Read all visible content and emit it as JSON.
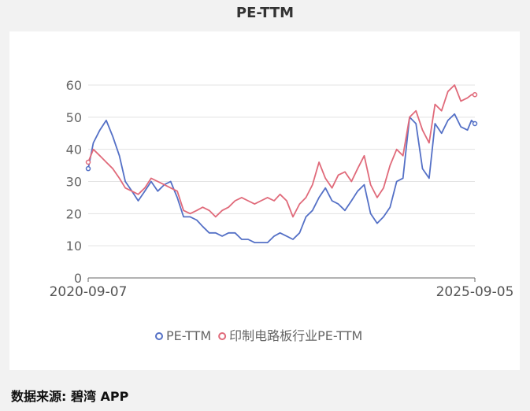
{
  "title": "PE-TTM",
  "source": "数据来源: 碧湾 APP",
  "colors": {
    "series1": "#5470c6",
    "series2": "#e06a7a",
    "grid": "#e3e3e3",
    "axis": "#666666"
  },
  "chart_data": {
    "type": "line",
    "title": "PE-TTM",
    "ylim": [
      0,
      60
    ],
    "yticks": [
      0,
      10,
      20,
      30,
      40,
      50,
      60
    ],
    "x_start": "2020-09-07",
    "x_end": "2025-09-05",
    "x_tick_labels": [
      "2020-09-07",
      "2025-09-05"
    ],
    "grid": true,
    "legend_position": "bottom",
    "series": [
      {
        "name": "PE-TTM",
        "x": [
          "2020-09-07",
          "2020-10-01",
          "2020-11-01",
          "2020-12-01",
          "2021-01-01",
          "2021-02-01",
          "2021-03-01",
          "2021-04-01",
          "2021-05-01",
          "2021-06-01",
          "2021-07-01",
          "2021-08-01",
          "2021-09-01",
          "2021-10-01",
          "2021-11-01",
          "2021-12-01",
          "2022-01-01",
          "2022-02-01",
          "2022-03-01",
          "2022-04-01",
          "2022-05-01",
          "2022-06-01",
          "2022-07-01",
          "2022-08-01",
          "2022-09-01",
          "2022-10-01",
          "2022-11-01",
          "2022-12-01",
          "2023-01-01",
          "2023-02-01",
          "2023-03-01",
          "2023-04-01",
          "2023-05-01",
          "2023-06-01",
          "2023-07-01",
          "2023-08-01",
          "2023-09-01",
          "2023-10-01",
          "2023-11-01",
          "2023-12-01",
          "2024-01-01",
          "2024-02-01",
          "2024-03-01",
          "2024-04-01",
          "2024-05-01",
          "2024-06-01",
          "2024-07-01",
          "2024-08-01",
          "2024-09-01",
          "2024-10-01",
          "2024-11-01",
          "2024-12-01",
          "2025-01-01",
          "2025-02-01",
          "2025-03-01",
          "2025-04-01",
          "2025-05-01",
          "2025-06-01",
          "2025-07-01",
          "2025-08-01",
          "2025-08-20",
          "2025-09-05"
        ],
        "values": [
          34,
          42,
          46,
          49,
          44,
          38,
          30,
          27,
          24,
          27,
          30,
          27,
          29,
          30,
          25,
          19,
          19,
          18,
          16,
          14,
          14,
          13,
          14,
          14,
          12,
          12,
          11,
          11,
          11,
          13,
          14,
          13,
          12,
          14,
          19,
          21,
          25,
          28,
          24,
          23,
          21,
          24,
          27,
          29,
          20,
          17,
          19,
          22,
          30,
          31,
          50,
          48,
          34,
          31,
          48,
          45,
          49,
          51,
          47,
          46,
          49,
          48
        ],
        "color": "#5470c6"
      },
      {
        "name": "印制电路板行业PE-TTM",
        "x": [
          "2020-09-07",
          "2020-10-01",
          "2020-11-01",
          "2020-12-01",
          "2021-01-01",
          "2021-02-01",
          "2021-03-01",
          "2021-04-01",
          "2021-05-01",
          "2021-06-01",
          "2021-07-01",
          "2021-08-01",
          "2021-09-01",
          "2021-10-01",
          "2021-11-01",
          "2021-12-01",
          "2022-01-01",
          "2022-02-01",
          "2022-03-01",
          "2022-04-01",
          "2022-05-01",
          "2022-06-01",
          "2022-07-01",
          "2022-08-01",
          "2022-09-01",
          "2022-10-01",
          "2022-11-01",
          "2022-12-01",
          "2023-01-01",
          "2023-02-01",
          "2023-03-01",
          "2023-04-01",
          "2023-05-01",
          "2023-06-01",
          "2023-07-01",
          "2023-08-01",
          "2023-09-01",
          "2023-10-01",
          "2023-11-01",
          "2023-12-01",
          "2024-01-01",
          "2024-02-01",
          "2024-03-01",
          "2024-04-01",
          "2024-05-01",
          "2024-06-01",
          "2024-07-01",
          "2024-08-01",
          "2024-09-01",
          "2024-10-01",
          "2024-11-01",
          "2024-12-01",
          "2025-01-01",
          "2025-02-01",
          "2025-03-01",
          "2025-04-01",
          "2025-05-01",
          "2025-06-01",
          "2025-07-01",
          "2025-08-01",
          "2025-08-20",
          "2025-09-05"
        ],
        "values": [
          36,
          40,
          38,
          36,
          34,
          31,
          28,
          27,
          26,
          28,
          31,
          30,
          29,
          28,
          27,
          21,
          20,
          21,
          22,
          21,
          19,
          21,
          22,
          24,
          25,
          24,
          23,
          24,
          25,
          24,
          26,
          24,
          19,
          23,
          25,
          29,
          36,
          31,
          28,
          32,
          33,
          30,
          34,
          38,
          29,
          25,
          28,
          35,
          40,
          38,
          50,
          52,
          46,
          42,
          54,
          52,
          58,
          60,
          55,
          56,
          57,
          57
        ],
        "color": "#e06a7a"
      }
    ]
  }
}
